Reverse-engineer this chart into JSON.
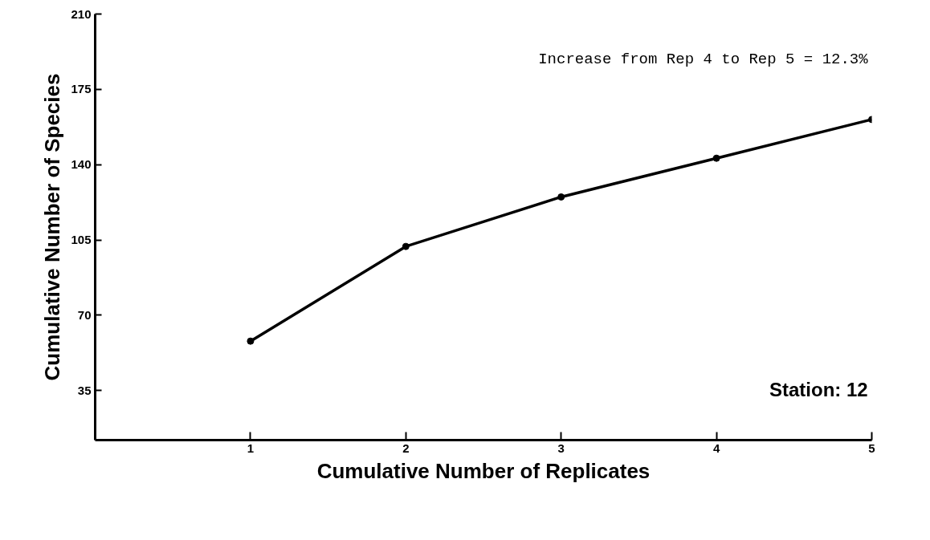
{
  "chart_data": {
    "type": "line",
    "xlabel": "Cumulative Number of Replicates",
    "ylabel": "Cumulative Number of Species",
    "x": [
      1,
      2,
      3,
      4,
      5
    ],
    "series": [
      {
        "color": "#000000",
        "values": [
          58,
          102,
          125,
          143,
          161
        ]
      }
    ],
    "xlim": [
      0,
      5
    ],
    "xticks": [
      1,
      2,
      3,
      4,
      5
    ],
    "ylim": [
      12,
      210
    ],
    "yticks": [
      35,
      70,
      105,
      140,
      175,
      210
    ],
    "marker": "circle",
    "line_style": "solid",
    "annotations": [
      "Increase from Rep 4 to Rep 5 = 12.3%",
      "Station: 12"
    ]
  }
}
